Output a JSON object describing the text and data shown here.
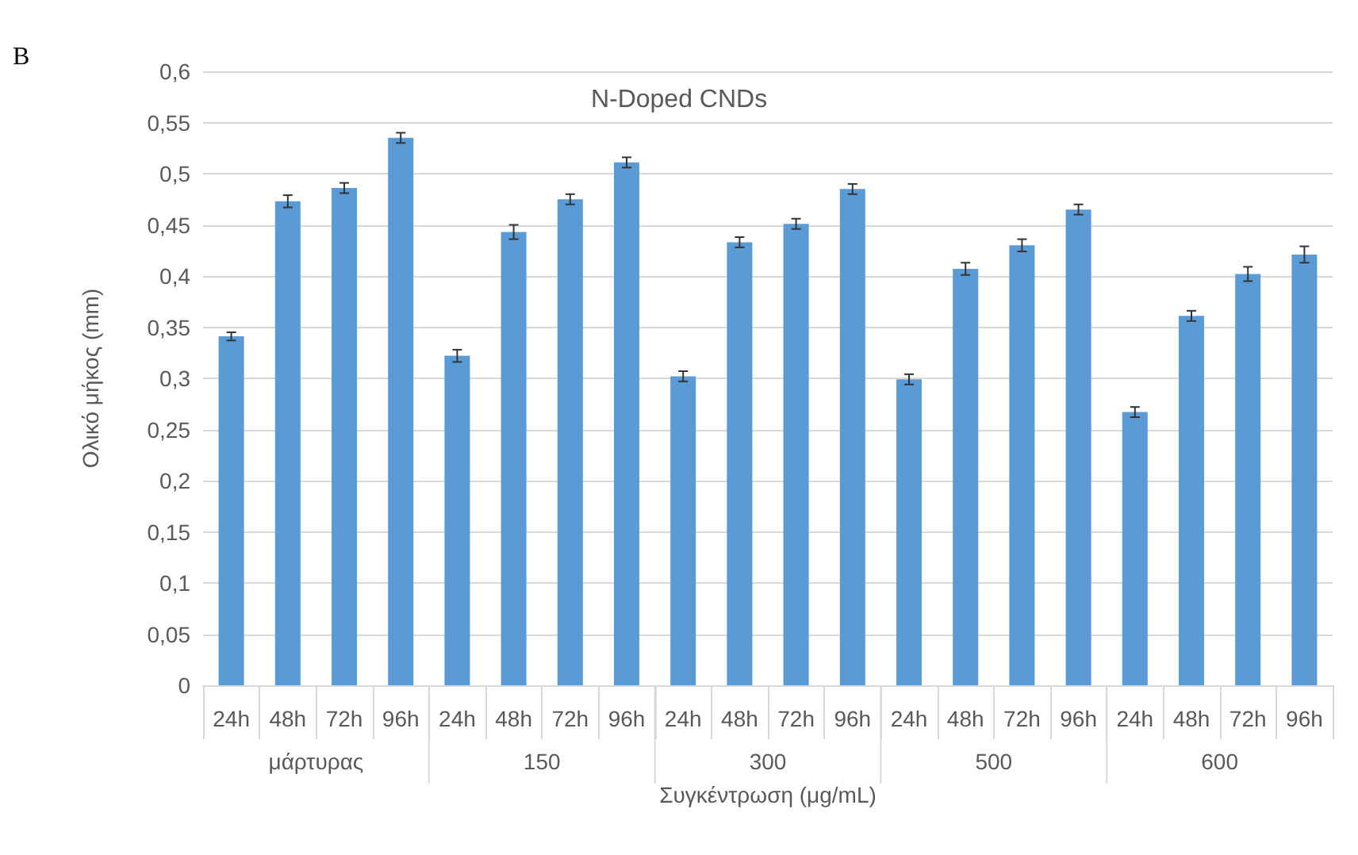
{
  "chart_data": {
    "type": "bar",
    "title": "N-Doped CNDs",
    "subtitle": "B",
    "xlabel": "Συγκέντρωση (μg/mL)",
    "ylabel": "Ολικό μήκος (mm)",
    "categories": [
      "24h",
      "48h",
      "72h",
      "96h",
      "24h",
      "48h",
      "72h",
      "96h",
      "24h",
      "48h",
      "72h",
      "96h",
      "24h",
      "48h",
      "72h",
      "96h",
      "24h",
      "48h",
      "72h",
      "96h"
    ],
    "values": [
      0.341,
      0.473,
      0.486,
      0.535,
      0.322,
      0.443,
      0.475,
      0.511,
      0.302,
      0.433,
      0.451,
      0.485,
      0.299,
      0.407,
      0.43,
      0.465,
      0.267,
      0.361,
      0.402,
      0.421
    ],
    "errors": [
      0.004,
      0.006,
      0.005,
      0.005,
      0.006,
      0.007,
      0.005,
      0.005,
      0.005,
      0.005,
      0.005,
      0.005,
      0.005,
      0.006,
      0.006,
      0.005,
      0.005,
      0.005,
      0.007,
      0.008
    ],
    "color": "#5b9bd5",
    "annotations": [
      "μάρτυρας",
      "150",
      "300",
      "500",
      "600"
    ],
    "ylim": [
      0,
      0.6
    ],
    "yticks": [
      {
        "value": 0,
        "label": "0"
      },
      {
        "value": 0.05,
        "label": "0,05"
      },
      {
        "value": 0.1,
        "label": "0,1"
      },
      {
        "value": 0.15,
        "label": "0,15"
      },
      {
        "value": 0.2,
        "label": "0,2"
      },
      {
        "value": 0.25,
        "label": "0,25"
      },
      {
        "value": 0.3,
        "label": "0,3"
      },
      {
        "value": 0.35,
        "label": "0,35"
      },
      {
        "value": 0.4,
        "label": "0,4"
      },
      {
        "value": 0.45,
        "label": "0,45"
      },
      {
        "value": 0.5,
        "label": "0,5"
      },
      {
        "value": 0.55,
        "label": "0,55"
      },
      {
        "value": 0.6,
        "label": "0,6"
      }
    ],
    "grid": "y"
  }
}
